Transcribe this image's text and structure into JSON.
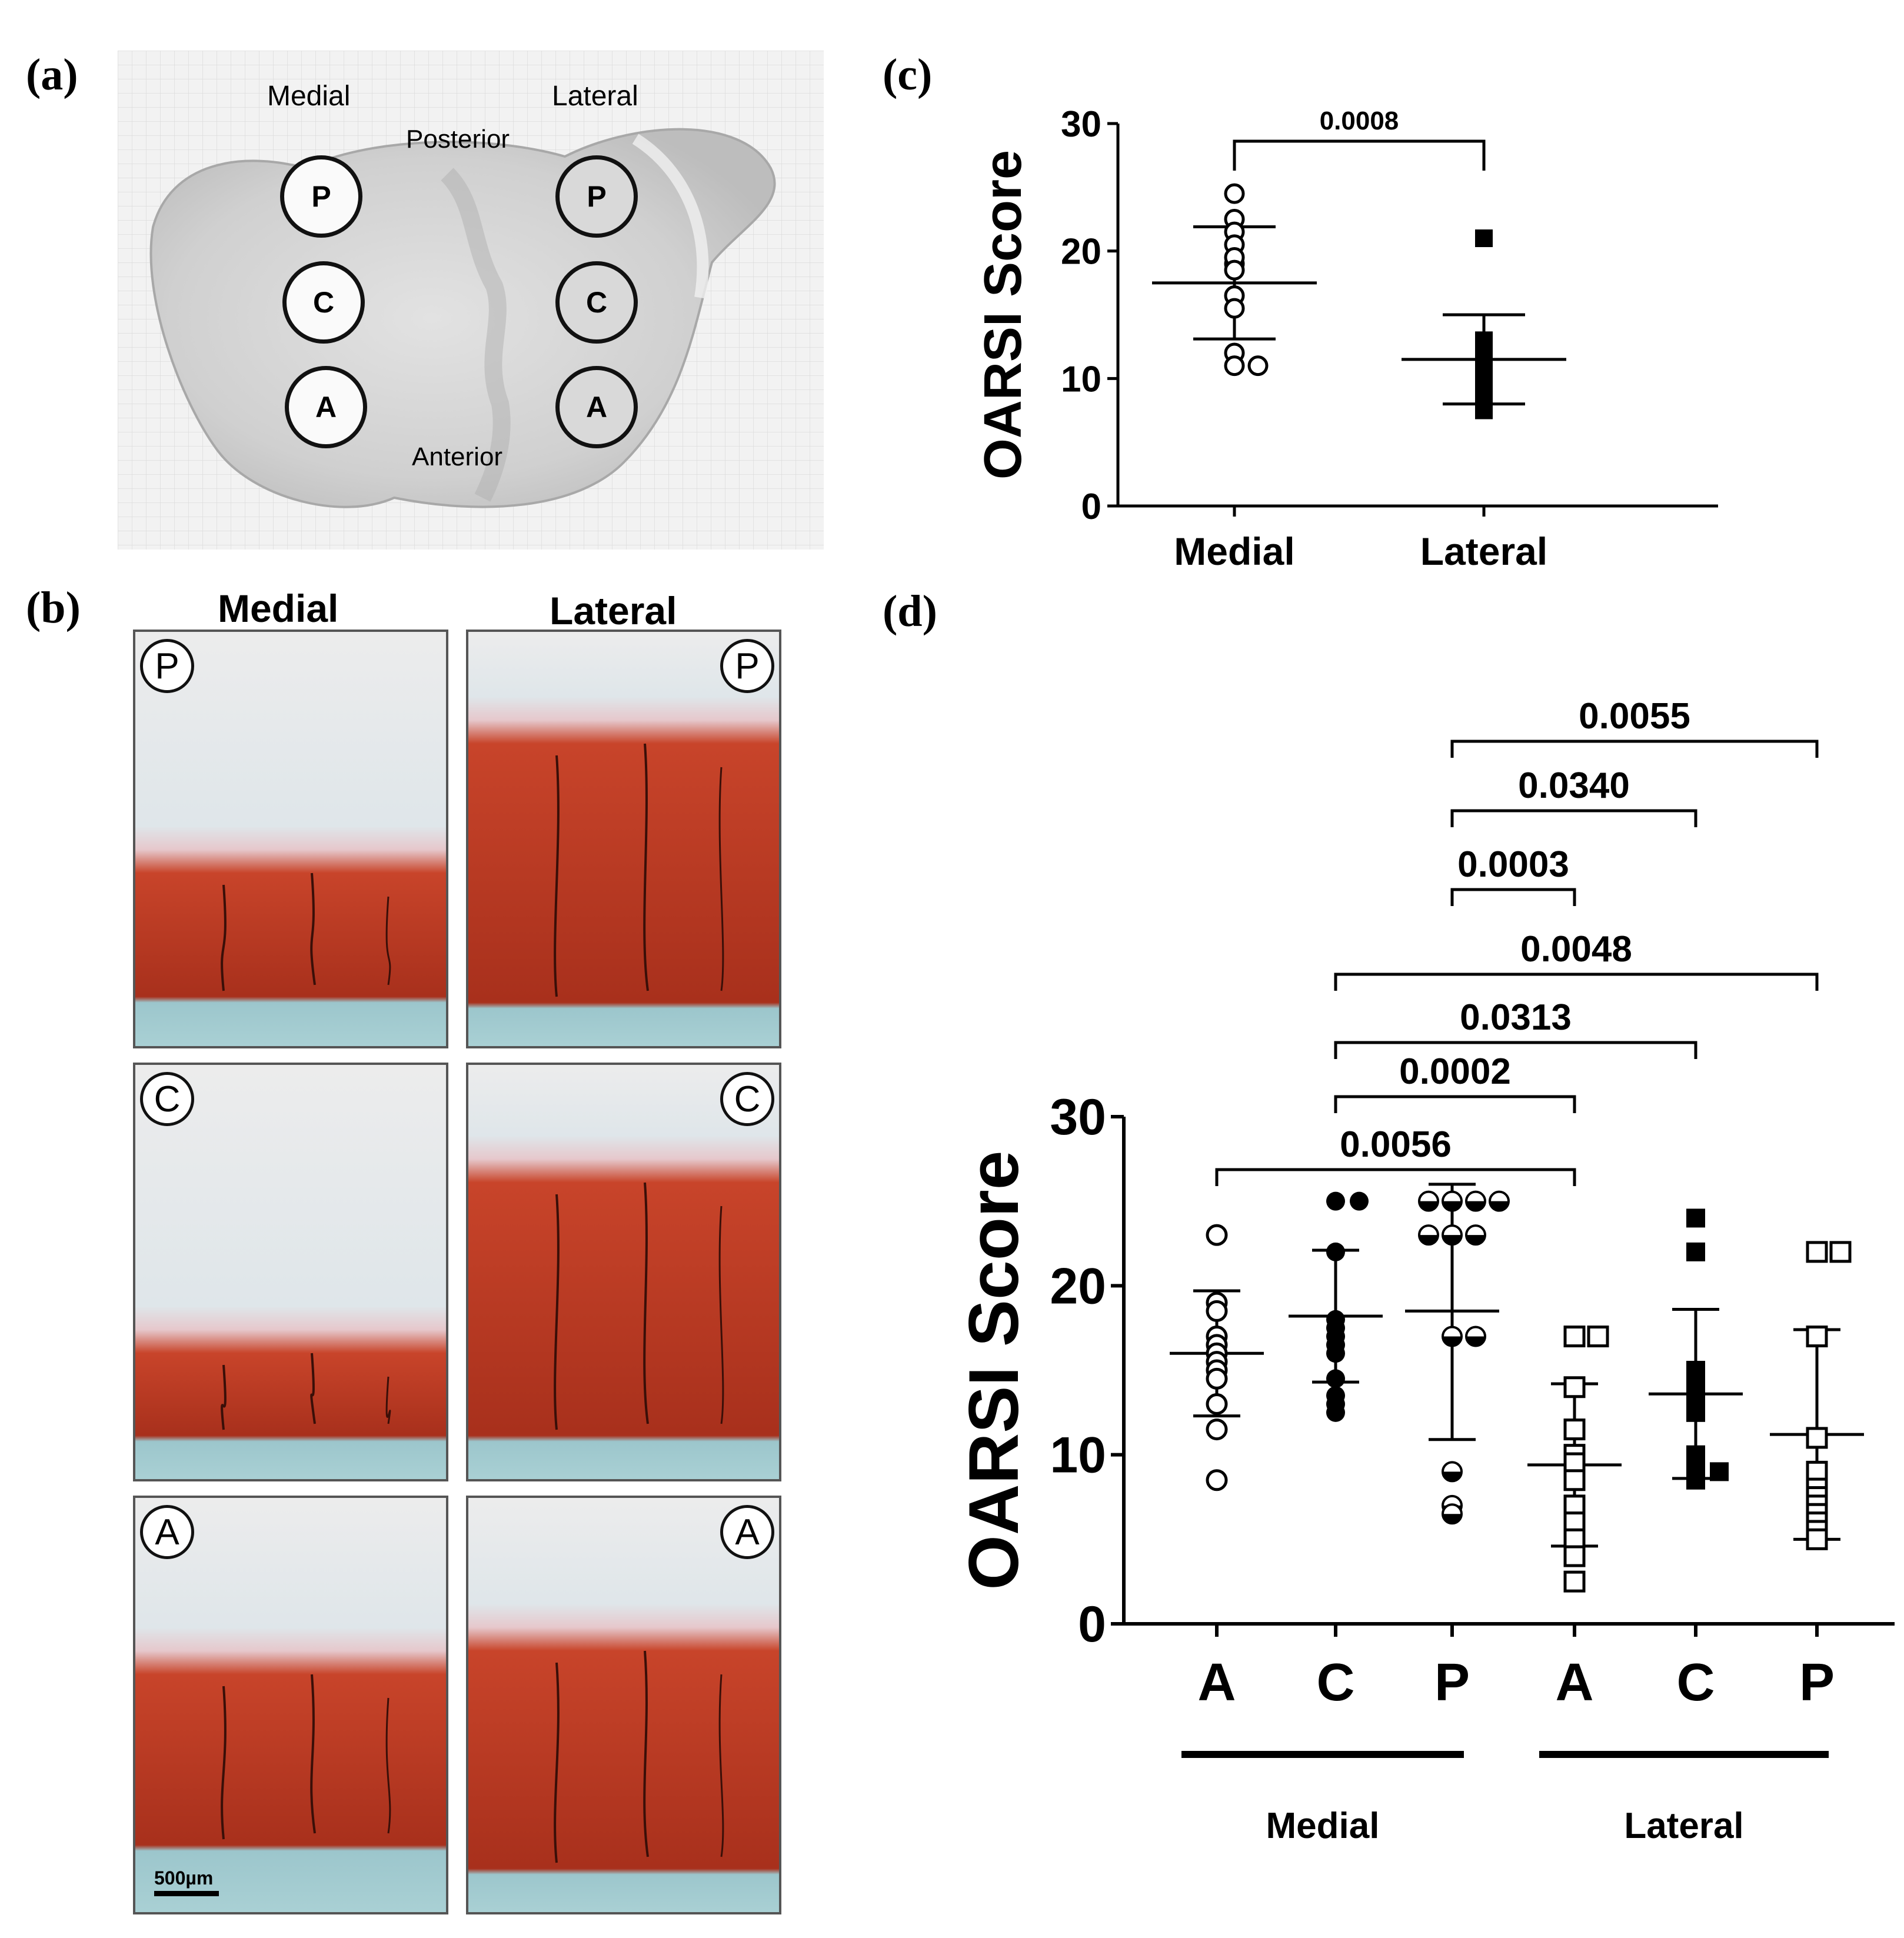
{
  "panels": {
    "a": {
      "label": "(a)",
      "texts": {
        "medial": "Medial",
        "lateral": "Lateral",
        "posterior": "Posterior",
        "anterior": "Anterior"
      },
      "circles": {
        "p": "P",
        "c": "C",
        "a": "A"
      }
    },
    "b": {
      "label": "(b)",
      "col_medial": "Medial",
      "col_lateral": "Lateral",
      "rows": [
        "P",
        "C",
        "A"
      ],
      "scale_bar": "500µm"
    },
    "c": {
      "label": "(c)"
    },
    "d": {
      "label": "(d)"
    }
  },
  "chart_data": [
    {
      "id": "c",
      "type": "scatter",
      "ylabel": "OARSI Score",
      "ylim": [
        0,
        30
      ],
      "yticks": [
        0,
        10,
        20,
        30
      ],
      "categories": [
        "Medial",
        "Lateral"
      ],
      "series": [
        {
          "category": "Medial",
          "marker": "open-circle",
          "values": [
            24.5,
            22.5,
            21.5,
            20.5,
            19.0,
            19.5,
            18.5,
            16.5,
            15.5,
            12.0,
            11.0,
            11.0
          ],
          "mean": 17.5,
          "sd_upper": 21.9,
          "sd_lower": 13.1
        },
        {
          "category": "Lateral",
          "marker": "filled-square",
          "values": [
            21.0,
            13.0,
            12.5,
            12.0,
            11.5,
            11.0,
            10.5,
            10.0,
            9.5,
            9.0,
            8.5,
            7.5
          ],
          "mean": 11.5,
          "sd_upper": 15.0,
          "sd_lower": 8.0
        }
      ],
      "comparisons": [
        {
          "from": "Medial",
          "to": "Lateral",
          "p": "0.0008"
        }
      ]
    },
    {
      "id": "d",
      "type": "scatter",
      "ylabel": "OARSI Score",
      "ylim": [
        0,
        30
      ],
      "yticks": [
        0,
        10,
        20,
        30
      ],
      "categories": [
        "A",
        "C",
        "P",
        "A",
        "C",
        "P"
      ],
      "groups": [
        {
          "label": "Medial",
          "spans": [
            0,
            2
          ]
        },
        {
          "label": "Lateral",
          "spans": [
            3,
            5
          ]
        }
      ],
      "series": [
        {
          "index": 0,
          "marker": "open-circle",
          "values": [
            23.0,
            19.0,
            18.5,
            17.0,
            16.5,
            16.0,
            15.5,
            15.0,
            14.5,
            13.0,
            11.5,
            8.5
          ],
          "mean": 16.0,
          "sd_upper": 19.7,
          "sd_lower": 12.3
        },
        {
          "index": 1,
          "marker": "filled-circle",
          "values": [
            25.0,
            25.0,
            22.0,
            18.0,
            17.5,
            17.0,
            16.5,
            16.0,
            14.5,
            13.5,
            13.0,
            12.5
          ],
          "mean": 18.2,
          "sd_upper": 22.1,
          "sd_lower": 14.3
        },
        {
          "index": 2,
          "marker": "half-circle",
          "values": [
            25.0,
            25.0,
            25.0,
            25.0,
            23.0,
            23.0,
            23.0,
            17.0,
            17.0,
            9.0,
            7.0,
            6.5
          ],
          "mean": 18.5,
          "sd_upper": 26.0,
          "sd_lower": 10.9
        },
        {
          "index": 3,
          "marker": "open-square",
          "values": [
            17.0,
            17.0,
            14.0,
            11.5,
            10.0,
            9.5,
            8.5,
            7.0,
            6.0,
            5.0,
            4.0,
            2.5
          ],
          "mean": 9.4,
          "sd_upper": 14.2,
          "sd_lower": 4.6
        },
        {
          "index": 4,
          "marker": "filled-square",
          "values": [
            24.0,
            22.0,
            15.0,
            14.5,
            14.0,
            13.5,
            13.0,
            12.5,
            10.0,
            9.0,
            9.0,
            8.5
          ],
          "mean": 13.6,
          "sd_upper": 18.6,
          "sd_lower": 8.6
        },
        {
          "index": 5,
          "marker": "open-square",
          "values": [
            22.0,
            22.0,
            17.0,
            11.0,
            9.0,
            8.0,
            7.5,
            7.0,
            6.5,
            6.0,
            5.5,
            5.0
          ],
          "mean": 11.2,
          "sd_upper": 17.4,
          "sd_lower": 5.0
        }
      ],
      "comparisons": [
        {
          "from": 2,
          "to": 5,
          "p": "0.0055"
        },
        {
          "from": 2,
          "to": 4,
          "p": "0.0340"
        },
        {
          "from": 2,
          "to": 3,
          "p": "0.0003"
        },
        {
          "from": 1,
          "to": 5,
          "p": "0.0048"
        },
        {
          "from": 1,
          "to": 4,
          "p": "0.0313"
        },
        {
          "from": 1,
          "to": 3,
          "p": "0.0002"
        },
        {
          "from": 0,
          "to": 3,
          "p": "0.0056"
        }
      ]
    }
  ]
}
